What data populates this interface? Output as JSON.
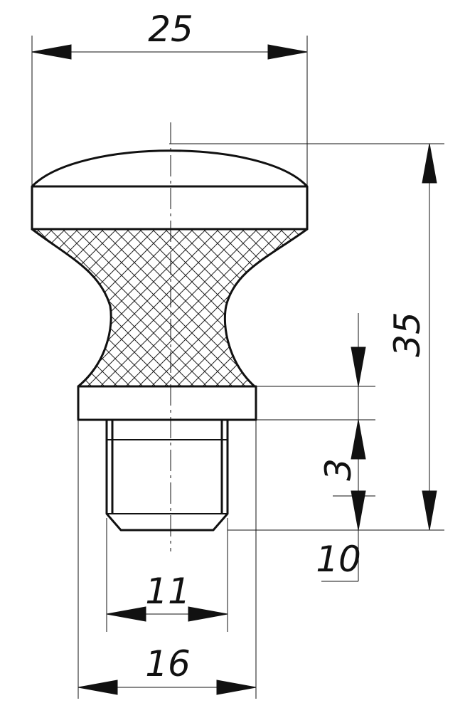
{
  "dimensions": {
    "overall_width": "25",
    "overall_height": "35",
    "thread_diameter": "11",
    "collar_diameter": "16",
    "thread_length": "10",
    "chamfer": "3"
  },
  "colors": {
    "line": "#111111",
    "hatch": "#222222",
    "background": "#ffffff"
  }
}
